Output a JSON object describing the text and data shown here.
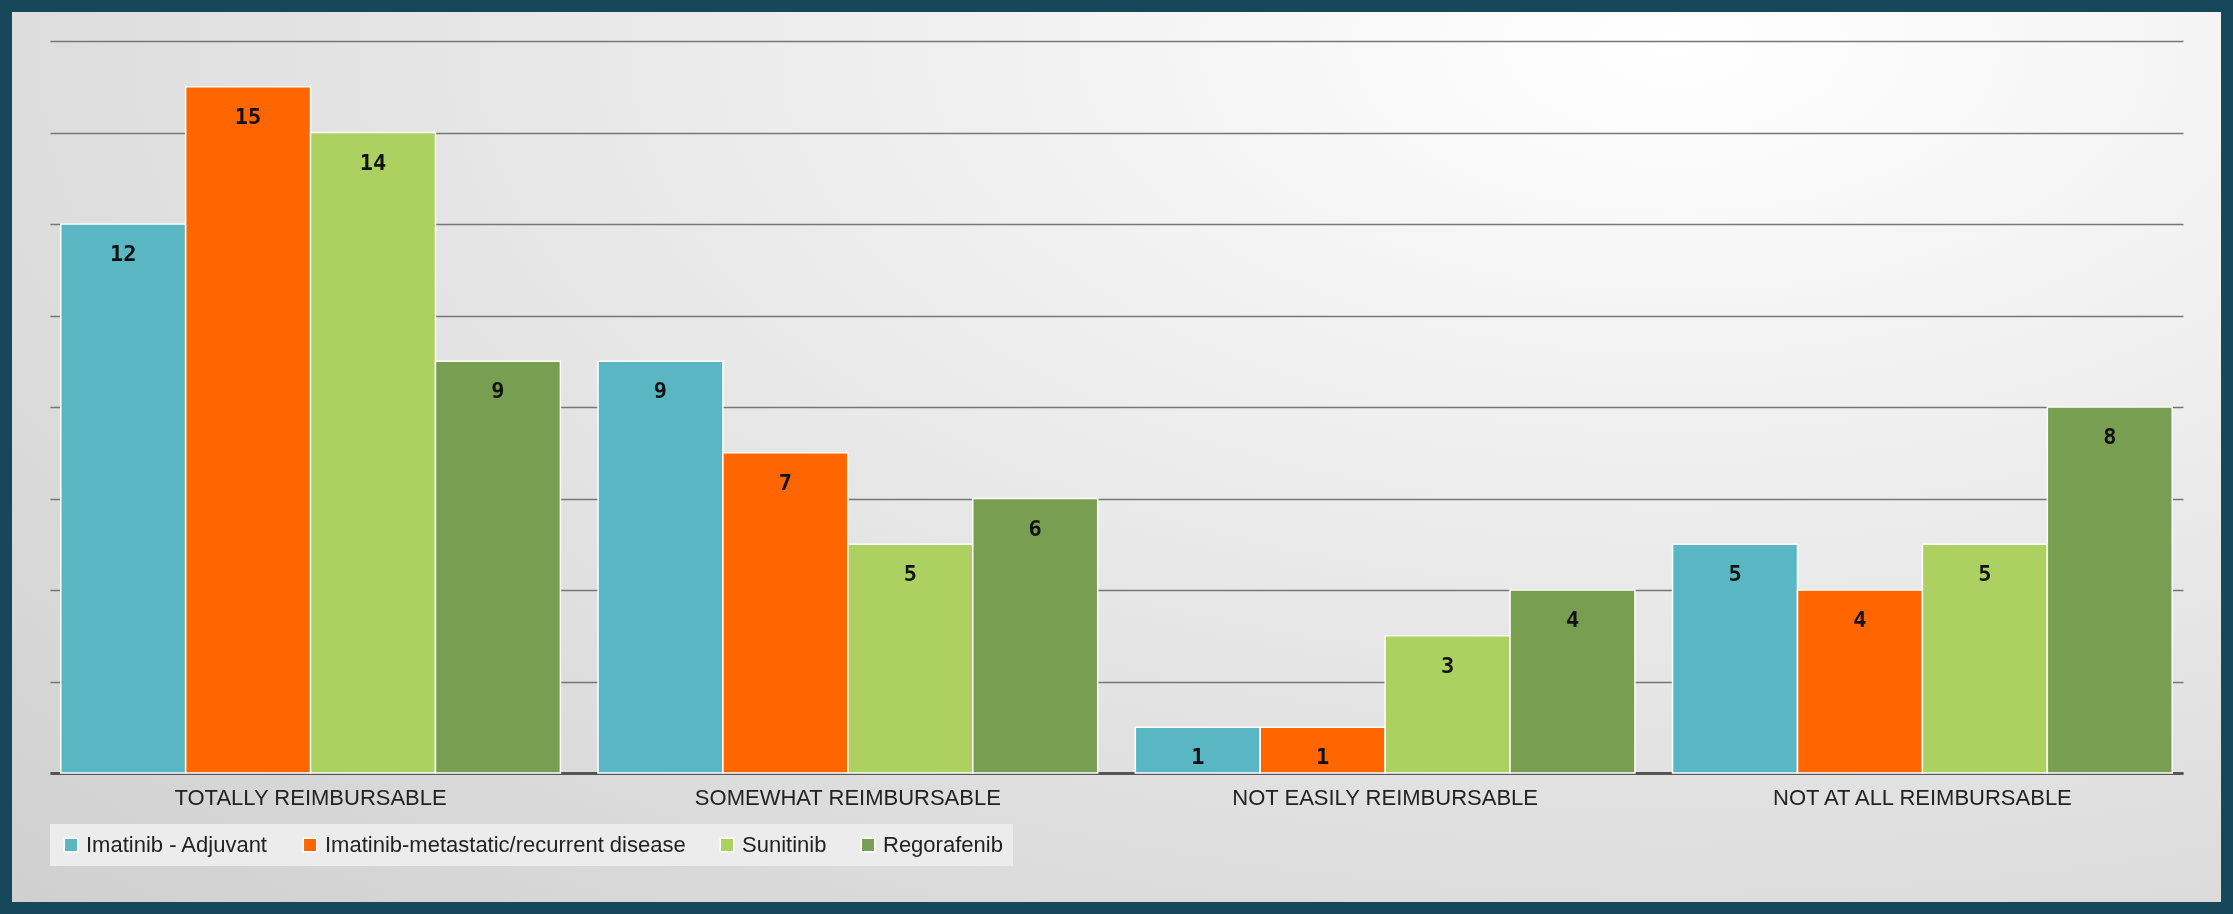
{
  "chart_data": {
    "type": "bar",
    "categories": [
      "TOTALLY REIMBURSABLE",
      "SOMEWHAT REIMBURSABLE",
      "NOT EASILY REIMBURSABLE",
      "NOT AT ALL REIMBURSABLE"
    ],
    "series": [
      {
        "name": "Imatinib - Adjuvant",
        "color": "#5ab6c3",
        "values": [
          12,
          9,
          1,
          5
        ]
      },
      {
        "name": "Imatinib-metastatic/recurrent disease",
        "color": "#ff6600",
        "values": [
          15,
          7,
          1,
          4
        ]
      },
      {
        "name": "Sunitinib",
        "color": "#acd160",
        "values": [
          14,
          5,
          3,
          5
        ]
      },
      {
        "name": "Regorafenib",
        "color": "#789e52",
        "values": [
          9,
          6,
          4,
          8
        ]
      }
    ],
    "ylim": [
      0,
      16
    ],
    "yticks": [
      0,
      2,
      4,
      6,
      8,
      10,
      12,
      14,
      16
    ],
    "grid": "y",
    "tick_labels": "x",
    "data_labels": true,
    "legend": "bottom"
  }
}
